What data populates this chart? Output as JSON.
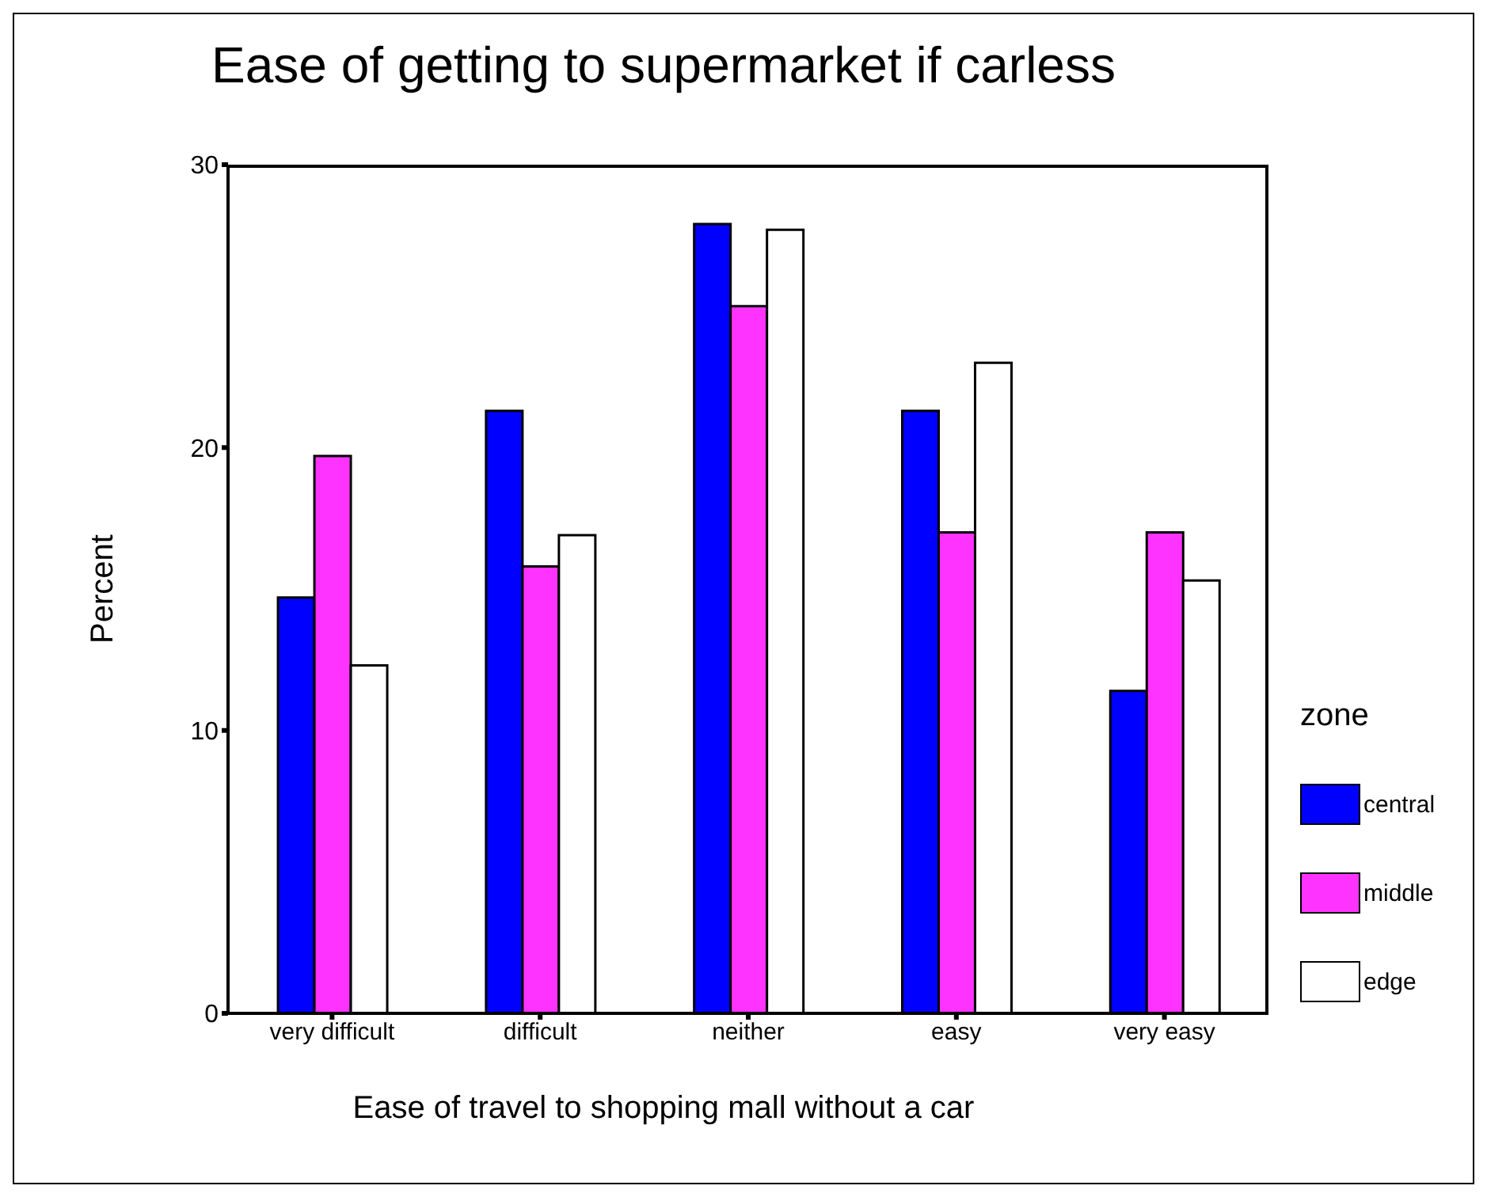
{
  "chart_data": {
    "type": "bar",
    "title": "Ease of getting to supermarket if carless",
    "xlabel": "Ease of travel to shopping mall without a car",
    "ylabel": "Percent",
    "legend_title": "zone",
    "categories": [
      "very difficult",
      "difficult",
      "neither",
      "easy",
      "very easy"
    ],
    "series": [
      {
        "name": "central",
        "color": "#0000ff",
        "values": [
          14.7,
          21.3,
          27.9,
          21.3,
          11.4
        ]
      },
      {
        "name": "middle",
        "color": "#ff33ff",
        "values": [
          19.7,
          15.8,
          25.0,
          17.0,
          17.0
        ]
      },
      {
        "name": "edge",
        "color": "#ffffff",
        "values": [
          12.3,
          16.9,
          27.7,
          23.0,
          15.3
        ]
      }
    ],
    "ylim": [
      0,
      30
    ],
    "yticks": [
      0,
      10,
      20,
      30
    ],
    "grid": false,
    "legend": "right"
  }
}
